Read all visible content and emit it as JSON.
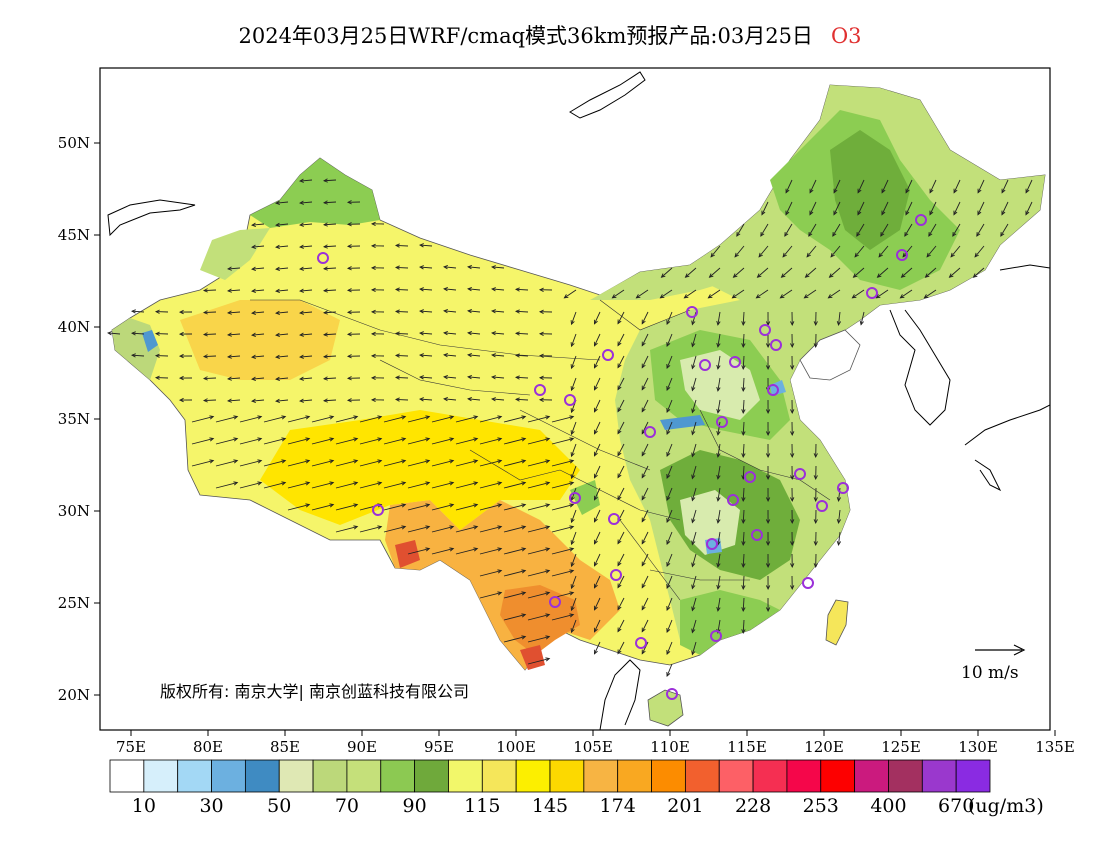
{
  "title": {
    "main": "2024年03月25日WRF/cmaq模式36km预报产品:03月25日",
    "species": "O3"
  },
  "map": {
    "lat_ticks": [
      "50N",
      "45N",
      "40N",
      "35N",
      "30N",
      "25N",
      "20N"
    ],
    "lon_ticks": [
      "75E",
      "80E",
      "85E",
      "90E",
      "95E",
      "100E",
      "105E",
      "110E",
      "115E",
      "120E",
      "125E",
      "130E",
      "135E"
    ],
    "copyright": "版权所有: 南京大学| 南京创蓝科技有限公司",
    "wind_reference": "10 m/s",
    "colors": {
      "land_base": "#f5f56a",
      "yellow_high": "#ffe500",
      "orange": "#f8b241",
      "dark_orange": "#ef8e2e",
      "red": "#e05030",
      "light_green": "#c2e07a",
      "mid_green": "#8ccd52",
      "dark_green": "#6fae3b",
      "pale_green": "#d8ebae",
      "lake_blue": "#4f98d0",
      "station_marker": "#9b30d9"
    }
  },
  "legend": {
    "unit": "(ug/m3)",
    "labels": [
      "10",
      "30",
      "50",
      "70",
      "90",
      "115",
      "145",
      "174",
      "201",
      "228",
      "253",
      "400",
      "670"
    ],
    "colors": [
      "#ffffff",
      "#d6effb",
      "#a3d8f5",
      "#6cb0e0",
      "#3f8bc2",
      "#dfe8b4",
      "#bcd87a",
      "#c5e07a",
      "#8cc952",
      "#6fa93b",
      "#f2f76a",
      "#f5e65a",
      "#fcef00",
      "#fcd900",
      "#f7b443",
      "#f9a821",
      "#fc8c00",
      "#f2602e",
      "#fd6066",
      "#f52f52",
      "#f5064a",
      "#fd0000",
      "#cb1a7e",
      "#a33060",
      "#9a38cd",
      "#8a2be2"
    ]
  }
}
